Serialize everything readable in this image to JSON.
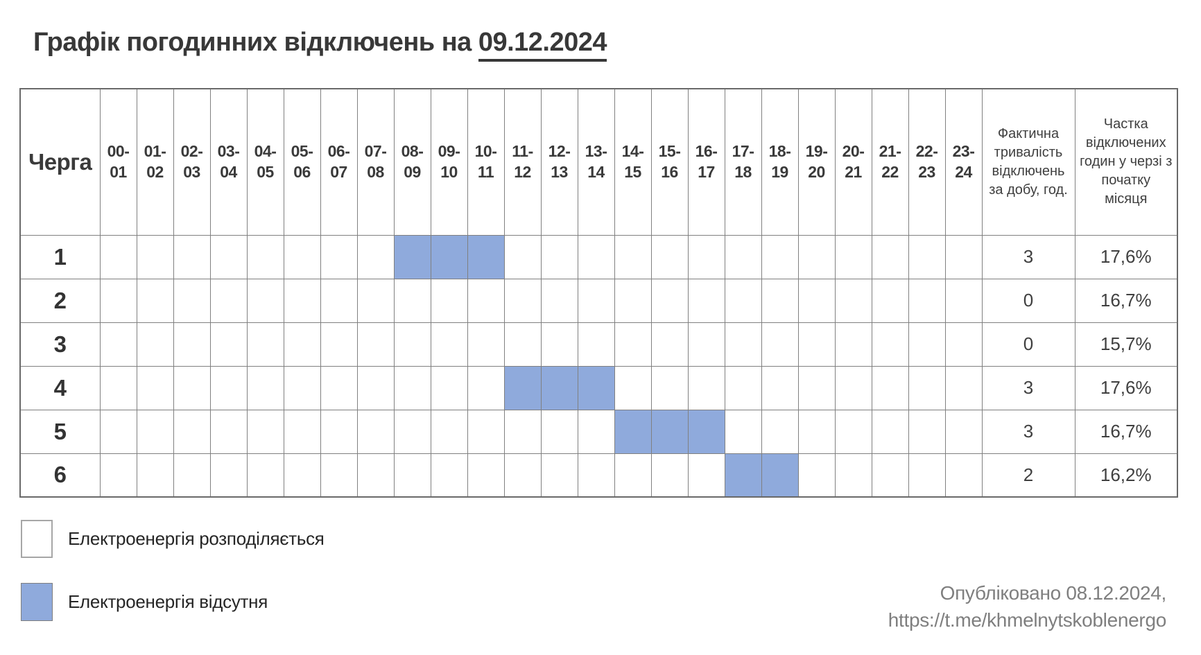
{
  "title": {
    "text": "Графік погодинних відключень на ",
    "date": "09.12.2024"
  },
  "table": {
    "queue_header": "Черга",
    "hour_headers": [
      "00-01",
      "01-02",
      "02-03",
      "03-04",
      "04-05",
      "05-06",
      "06-07",
      "07-08",
      "08-09",
      "09-10",
      "10-11",
      "11-12",
      "12-13",
      "13-14",
      "14-15",
      "15-16",
      "16-17",
      "17-18",
      "18-19",
      "19-20",
      "20-21",
      "21-22",
      "22-23",
      "23-24"
    ],
    "duration_header": "Фактична тривалість відключень за добу, год.",
    "share_header": "Частка відключених годин у черзі з початку місяця",
    "rows": [
      {
        "queue": "1",
        "outage_hours": [
          8,
          9,
          10
        ],
        "duration": "3",
        "share": "17,6%"
      },
      {
        "queue": "2",
        "outage_hours": [],
        "duration": "0",
        "share": "16,7%"
      },
      {
        "queue": "3",
        "outage_hours": [],
        "duration": "0",
        "share": "15,7%"
      },
      {
        "queue": "4",
        "outage_hours": [
          11,
          12,
          13
        ],
        "duration": "3",
        "share": "17,6%"
      },
      {
        "queue": "5",
        "outage_hours": [
          14,
          15,
          16
        ],
        "duration": "3",
        "share": "16,7%"
      },
      {
        "queue": "6",
        "outage_hours": [
          17,
          18
        ],
        "duration": "2",
        "share": "16,2%"
      }
    ]
  },
  "legend": {
    "available": {
      "label": "Електроенергія розподіляється",
      "color": "#FFFFFF"
    },
    "outage": {
      "label": "Електроенергія відсутня",
      "color": "#8FAADC"
    }
  },
  "footer": {
    "published": "Опубліковано 08.12.2024,",
    "link": "https://t.me/khmelnytskoblenergo"
  },
  "colors": {
    "outage_fill": "#8FAADC",
    "grid": "#808080",
    "text_dark": "#3A3A3A",
    "text_gray": "#7F7F7F"
  },
  "chart_data": {
    "type": "table",
    "title": "Графік погодинних відключень на 09.12.2024",
    "date": "09.12.2024",
    "columns": [
      "Черга",
      "00-01",
      "01-02",
      "02-03",
      "03-04",
      "04-05",
      "05-06",
      "06-07",
      "07-08",
      "08-09",
      "09-10",
      "10-11",
      "11-12",
      "12-13",
      "13-14",
      "14-15",
      "15-16",
      "16-17",
      "17-18",
      "18-19",
      "19-20",
      "20-21",
      "21-22",
      "22-23",
      "23-24",
      "Фактична тривалість відключень за добу, год.",
      "Частка відключених годин у черзі з початку місяця"
    ],
    "rows": [
      {
        "queue": 1,
        "outage_intervals": [
          "08-09",
          "09-10",
          "10-11"
        ],
        "duration_hours": 3,
        "share_since_month_start": "17,6%"
      },
      {
        "queue": 2,
        "outage_intervals": [],
        "duration_hours": 0,
        "share_since_month_start": "16,7%"
      },
      {
        "queue": 3,
        "outage_intervals": [],
        "duration_hours": 0,
        "share_since_month_start": "15,7%"
      },
      {
        "queue": 4,
        "outage_intervals": [
          "11-12",
          "12-13",
          "13-14"
        ],
        "duration_hours": 3,
        "share_since_month_start": "17,6%"
      },
      {
        "queue": 5,
        "outage_intervals": [
          "14-15",
          "15-16",
          "16-17"
        ],
        "duration_hours": 3,
        "share_since_month_start": "16,7%"
      },
      {
        "queue": 6,
        "outage_intervals": [
          "17-18",
          "18-19"
        ],
        "duration_hours": 2,
        "share_since_month_start": "16,2%"
      }
    ],
    "legend": [
      {
        "color": "#FFFFFF",
        "label": "Електроенергія розподіляється"
      },
      {
        "color": "#8FAADC",
        "label": "Електроенергія відсутня"
      }
    ],
    "footnote": "Опубліковано 08.12.2024, https://t.me/khmelnytskoblenergo"
  }
}
